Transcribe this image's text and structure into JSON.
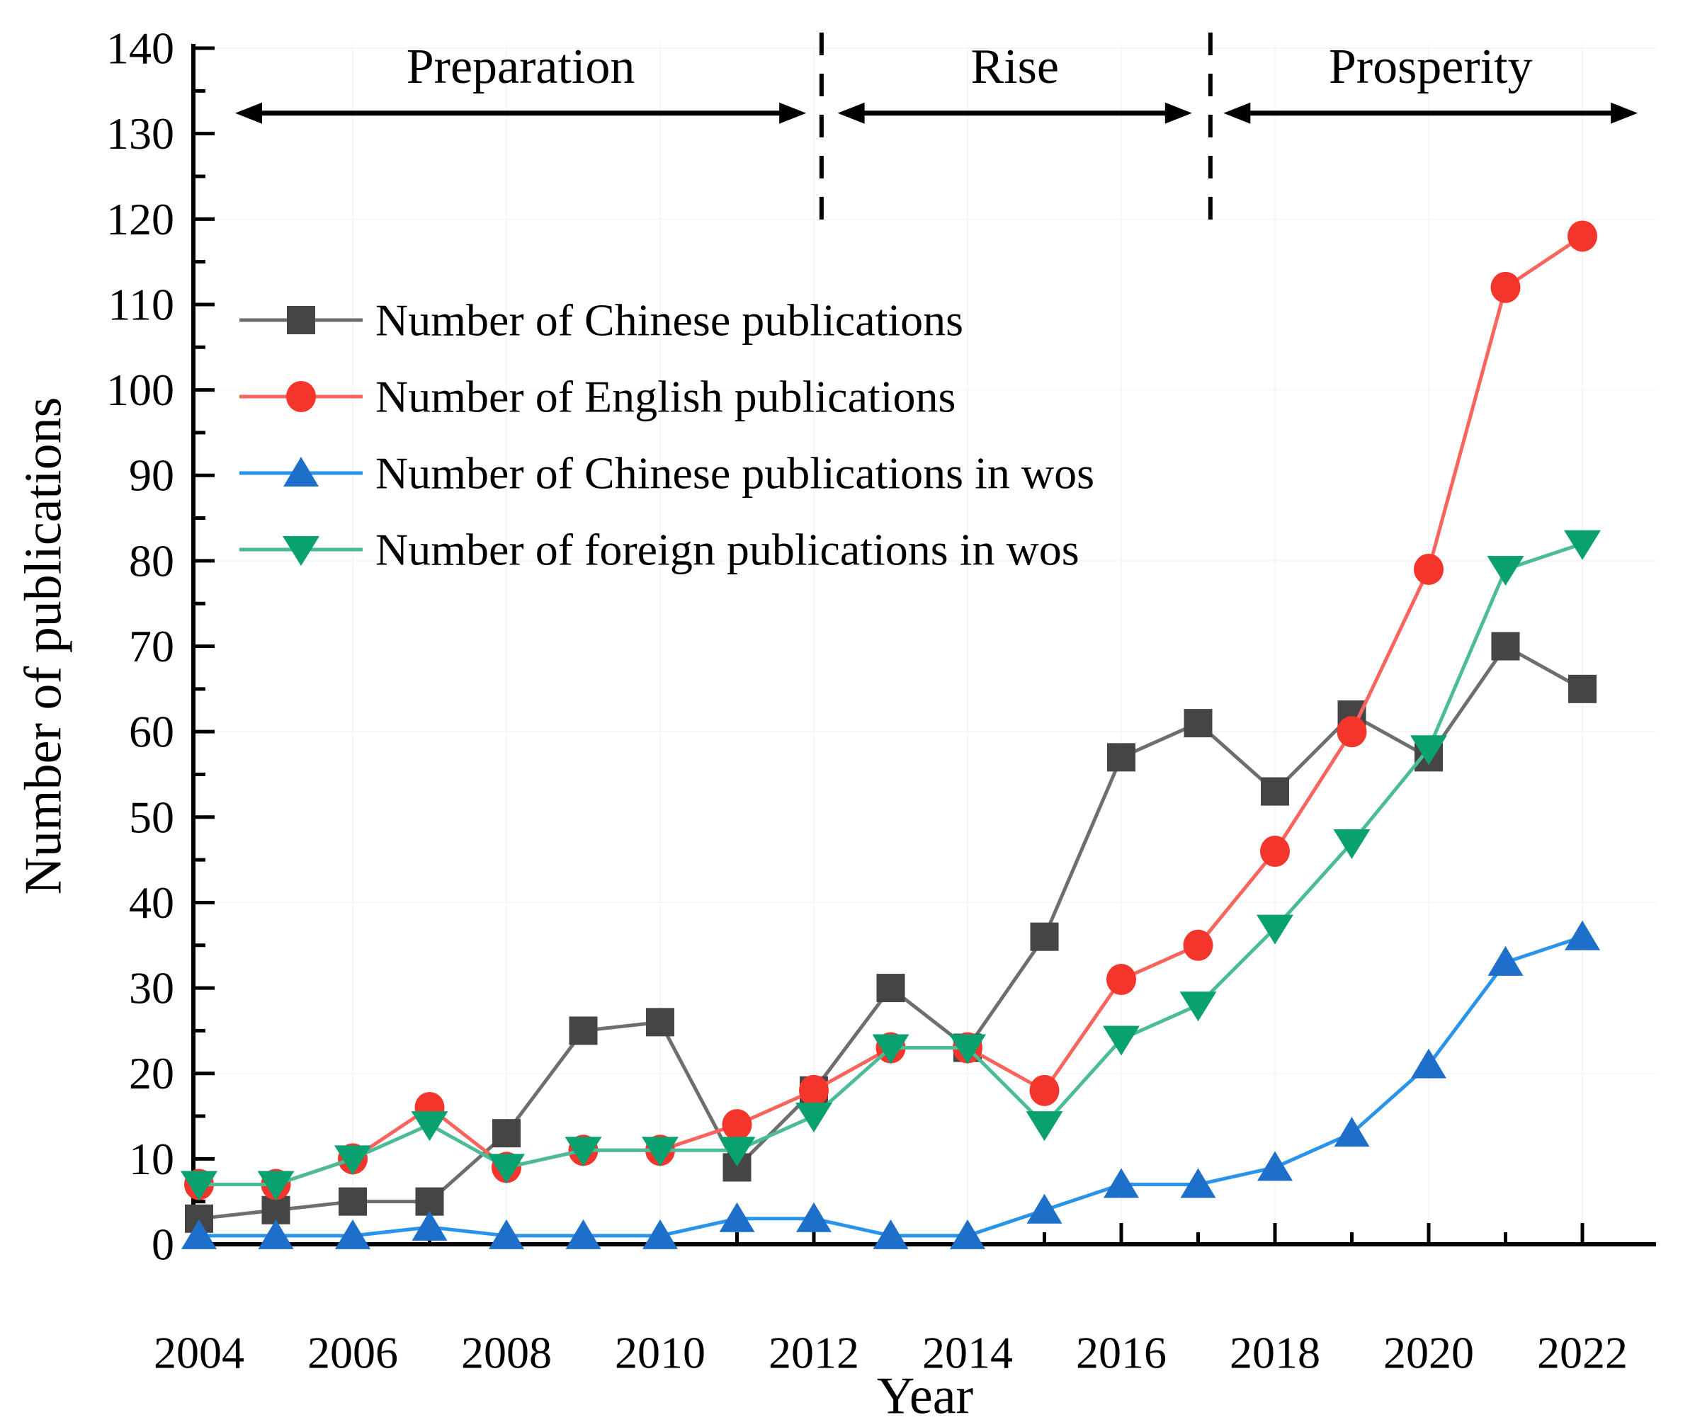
{
  "chart_data": {
    "type": "line",
    "title": "",
    "xlabel": "Year",
    "ylabel": "Number of publications",
    "x": [
      2004,
      2005,
      2006,
      2007,
      2008,
      2009,
      2010,
      2011,
      2012,
      2013,
      2014,
      2015,
      2016,
      2017,
      2018,
      2019,
      2020,
      2021,
      2022
    ],
    "x_tick_labels": [
      "2004",
      "2006",
      "2008",
      "2010",
      "2012",
      "2014",
      "2016",
      "2018",
      "2020",
      "2022"
    ],
    "xlim": [
      2003.9,
      2023.0
    ],
    "ylim": [
      0,
      140
    ],
    "y_major_step": 10,
    "y_minor_step": 5,
    "grid": "off",
    "legend_position": "upper-left-inside",
    "series": [
      {
        "name": "Number of Chinese publications",
        "marker": "square",
        "marker_color": "#454545",
        "line_color": "#6e6e6e",
        "values": [
          3,
          4,
          5,
          5,
          13,
          25,
          26,
          9,
          18,
          30,
          23,
          36,
          57,
          61,
          53,
          62,
          57,
          70,
          65
        ]
      },
      {
        "name": "Number of English publications",
        "marker": "circle",
        "marker_color": "#f4352b",
        "line_color": "#f9645c",
        "values": [
          7,
          7,
          10,
          16,
          9,
          11,
          11,
          14,
          18,
          23,
          23,
          18,
          31,
          35,
          46,
          60,
          79,
          112,
          118
        ]
      },
      {
        "name": "Number of Chinese publications in wos",
        "marker": "triangle-up",
        "marker_color": "#1d6fc9",
        "line_color": "#2a93ea",
        "values": [
          1,
          1,
          1,
          2,
          1,
          1,
          1,
          3,
          3,
          1,
          1,
          4,
          7,
          7,
          9,
          13,
          21,
          33,
          36
        ]
      },
      {
        "name": "Number of foreign publications in wos",
        "marker": "triangle-down",
        "marker_color": "#0aa170",
        "line_color": "#4cbc97",
        "values": [
          7,
          7,
          10,
          14,
          9,
          11,
          11,
          11,
          15,
          23,
          23,
          14,
          24,
          28,
          37,
          47,
          58,
          79,
          82
        ]
      }
    ],
    "draw_order": [
      0,
      1,
      3,
      2
    ],
    "phases": [
      {
        "label": "Preparation",
        "arrow_start_year": 2004.47,
        "arrow_end_year": 2011.9
      },
      {
        "label": "Rise",
        "arrow_start_year": 2012.31,
        "arrow_end_year": 2016.92
      },
      {
        "label": "Prosperity",
        "arrow_start_year": 2017.33,
        "arrow_end_year": 2022.72
      }
    ],
    "phase_divider_years": [
      2012.1,
      2017.16
    ],
    "phase_arrow_value": 132.4,
    "phase_label_value": 137.8,
    "colors": {
      "axis": "#000000",
      "phase_annotation": "#000000",
      "background": "#ffffff",
      "faint_grid": "#f6f6f6"
    }
  }
}
